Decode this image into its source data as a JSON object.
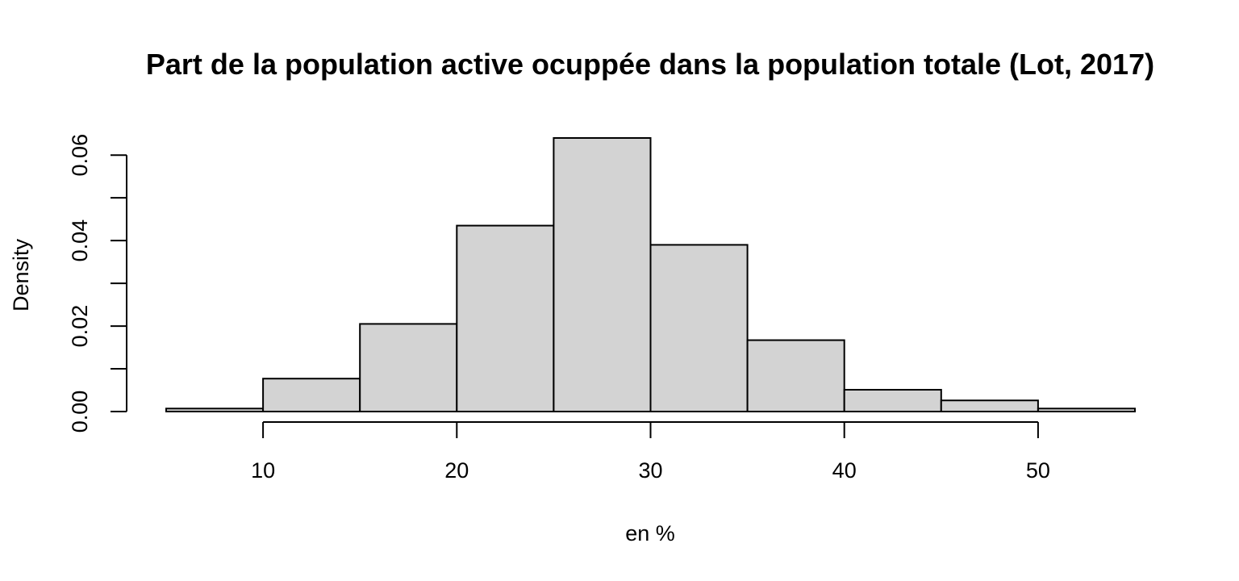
{
  "chart_data": {
    "type": "bar",
    "subtype": "histogram",
    "title": "Part de la population active ocuppée dans la population totale (Lot, 2017)",
    "xlabel": "en %",
    "ylabel": "Density",
    "bins": [
      {
        "x0": 5,
        "x1": 10,
        "density": 0.0007
      },
      {
        "x0": 10,
        "x1": 15,
        "density": 0.0077
      },
      {
        "x0": 15,
        "x1": 20,
        "density": 0.0205
      },
      {
        "x0": 20,
        "x1": 25,
        "density": 0.0435
      },
      {
        "x0": 25,
        "x1": 30,
        "density": 0.064
      },
      {
        "x0": 30,
        "x1": 35,
        "density": 0.039
      },
      {
        "x0": 35,
        "x1": 40,
        "density": 0.0167
      },
      {
        "x0": 40,
        "x1": 45,
        "density": 0.0051
      },
      {
        "x0": 45,
        "x1": 50,
        "density": 0.0026
      },
      {
        "x0": 50,
        "x1": 55,
        "density": 0.0007
      }
    ],
    "xlim": [
      5,
      55
    ],
    "ylim": [
      0,
      0.064
    ],
    "x_ticks": [
      10,
      20,
      30,
      40,
      50
    ],
    "x_tick_labels": [
      "10",
      "20",
      "30",
      "40",
      "50"
    ],
    "y_ticks": [
      0,
      0.01,
      0.02,
      0.03,
      0.04,
      0.05,
      0.06
    ],
    "y_tick_labels": [
      "0.00",
      "",
      "0.02",
      "",
      "0.04",
      "",
      "0.06"
    ],
    "bar_color": "#d3d3d3",
    "grid": false
  }
}
